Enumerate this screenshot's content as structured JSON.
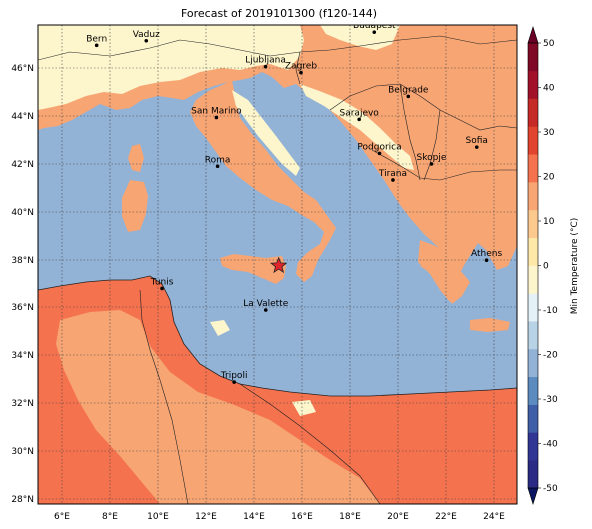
{
  "title": "Forecast of 2019101300 (f120-144)",
  "map": {
    "lon_range": [
      5,
      25
    ],
    "lat_range": [
      27.8,
      47.8
    ],
    "x_ticks": [
      "6°E",
      "8°E",
      "10°E",
      "12°E",
      "14°E",
      "16°E",
      "18°E",
      "20°E",
      "22°E",
      "24°E"
    ],
    "y_ticks": [
      "28°N",
      "30°N",
      "32°N",
      "34°N",
      "36°N",
      "38°N",
      "40°N",
      "42°N",
      "44°N",
      "46°N"
    ],
    "grid": true,
    "colors": {
      "sea": "#92b2d6",
      "land_cold": "#fdf6cd",
      "land_mild": "#f8a574",
      "land_warm": "#f4724e",
      "marker": "#e0262b"
    },
    "cities": [
      {
        "name": "Bern",
        "lon": 7.45,
        "lat": 46.95
      },
      {
        "name": "Vaduz",
        "lon": 9.52,
        "lat": 47.14
      },
      {
        "name": "Budapest",
        "lon": 19.04,
        "lat": 47.5
      },
      {
        "name": "Ljubljana",
        "lon": 14.5,
        "lat": 46.06
      },
      {
        "name": "Zagreb",
        "lon": 15.98,
        "lat": 45.81
      },
      {
        "name": "Belgrade",
        "lon": 20.46,
        "lat": 44.82
      },
      {
        "name": "San Marino",
        "lon": 12.45,
        "lat": 43.94
      },
      {
        "name": "Sarajevo",
        "lon": 18.41,
        "lat": 43.86
      },
      {
        "name": "Sofia",
        "lon": 23.32,
        "lat": 42.7
      },
      {
        "name": "Roma",
        "lon": 12.5,
        "lat": 41.9
      },
      {
        "name": "Podgorica",
        "lon": 19.26,
        "lat": 42.44
      },
      {
        "name": "Skopje",
        "lon": 21.43,
        "lat": 42.0
      },
      {
        "name": "Tirana",
        "lon": 19.82,
        "lat": 41.33
      },
      {
        "name": "Athens",
        "lon": 23.73,
        "lat": 37.98
      },
      {
        "name": "Tunis",
        "lon": 10.18,
        "lat": 36.8
      },
      {
        "name": "La Valette",
        "lon": 14.51,
        "lat": 35.9
      },
      {
        "name": "Tripoli",
        "lon": 13.19,
        "lat": 32.89
      }
    ],
    "marker": {
      "lon": 15.05,
      "lat": 37.75,
      "shape": "star"
    }
  },
  "colorbar": {
    "label": "Min Temperature (°C)",
    "min": -50,
    "max": 50,
    "extend": "both",
    "tick_labels": [
      "-50",
      "-40",
      "-30",
      "-20",
      "-10",
      "0",
      "10",
      "20",
      "30",
      "40",
      "50"
    ],
    "colors": [
      "#2b2b86",
      "#313695",
      "#3f5ea8",
      "#5b8bbf",
      "#92b2d6",
      "#b8d2e6",
      "#e4f2f8",
      "#fdf6cd",
      "#fde8a8",
      "#fbc98e",
      "#f8a574",
      "#f4724e",
      "#e1452f",
      "#c52a27",
      "#a1122a",
      "#7f0826"
    ],
    "under_color": "#0b1560",
    "over_color": "#6a0025"
  }
}
